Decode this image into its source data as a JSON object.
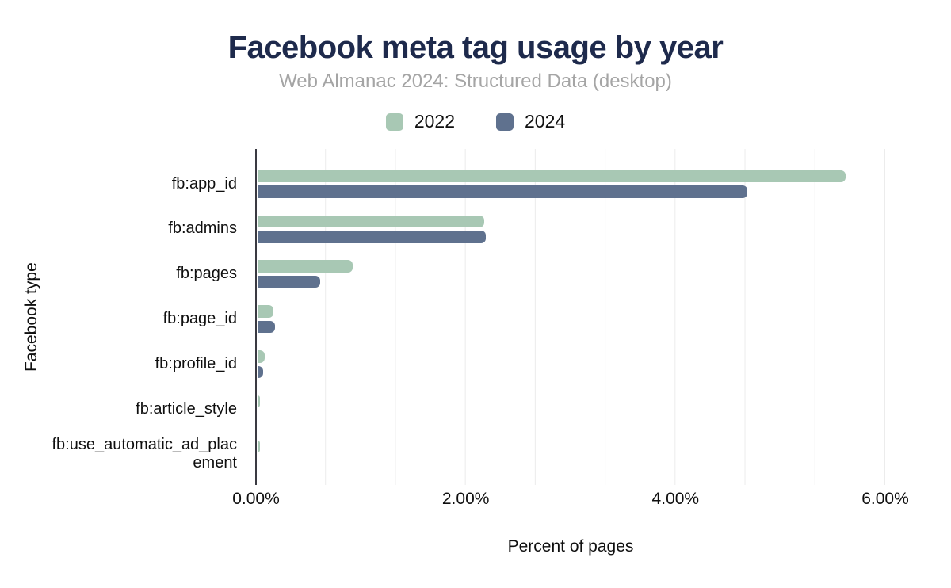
{
  "header": {
    "title": "Facebook meta tag usage by year",
    "subtitle": "Web Almanac 2024: Structured Data (desktop)"
  },
  "colors": {
    "title": "#1e2a4c",
    "subtitle": "#a5a5a5",
    "series_2022": "#a8c8b4",
    "series_2024": "#5f718e",
    "gridline": "#ececec",
    "axis_line": "#3a3a42",
    "text": "#0f0f0f"
  },
  "chart_data": {
    "type": "bar",
    "orientation": "horizontal",
    "title": "Facebook meta tag usage by year",
    "subtitle": "Web Almanac 2024: Structured Data (desktop)",
    "xlabel": "Percent of pages",
    "ylabel": "Facebook type",
    "xlim": [
      0,
      6
    ],
    "xtick_labels": [
      "0.00%",
      "2.00%",
      "4.00%",
      "6.00%"
    ],
    "xtick_values": [
      0,
      2,
      4,
      6
    ],
    "grid": "vertical-light",
    "legend_position": "top-center",
    "categories": [
      "fb:app_id",
      "fb:admins",
      "fb:pages",
      "fb:page_id",
      "fb:profile_id",
      "fb:article_style",
      "fb:use_automatic_ad_placement"
    ],
    "series": [
      {
        "name": "2022",
        "color": "#a8c8b4",
        "values": [
          5.62,
          2.17,
          0.91,
          0.15,
          0.07,
          0.02,
          0.02
        ]
      },
      {
        "name": "2024",
        "color": "#5f718e",
        "values": [
          4.68,
          2.18,
          0.6,
          0.17,
          0.05,
          0.01,
          0.01
        ]
      }
    ]
  }
}
